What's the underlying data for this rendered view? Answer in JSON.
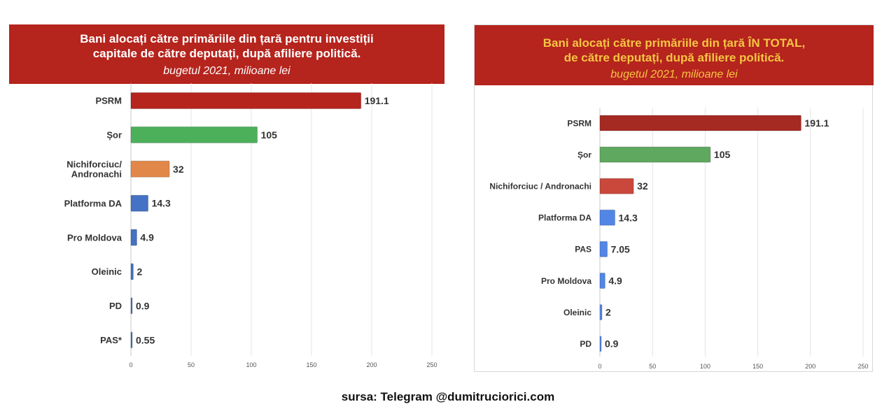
{
  "source": "sursa: Telegram @dumitruciorici.com",
  "chart_data": [
    {
      "type": "bar",
      "orientation": "horizontal",
      "title_lines": [
        "Bani alocați către primăriile din țară pentru investiții",
        "capitale de către deputați, după afiliere politică."
      ],
      "subtitle": "bugetul 2021, milioane lei",
      "categories": [
        "PSRM",
        "Șor",
        "Nichiforciuc/ Andronachi",
        "Platforma DA",
        "Pro  Moldova",
        "Oleinic",
        "PD",
        "PAS*"
      ],
      "values": [
        191.1,
        105,
        32,
        14.3,
        4.9,
        2,
        0.9,
        0.55
      ],
      "value_labels": [
        "191.1",
        "105",
        "32",
        "14.3",
        "4.9",
        "2",
        "0.9",
        "0.55"
      ],
      "colors": [
        "#b5241d",
        "#4cb05a",
        "#e2874a",
        "#4472c4",
        "#4472c4",
        "#4472c4",
        "#4472c4",
        "#4472c4"
      ],
      "xticks": [
        "0",
        "50",
        "100",
        "150",
        "200",
        "250"
      ],
      "xlim": [
        0,
        250
      ],
      "grid": true
    },
    {
      "type": "bar",
      "orientation": "horizontal",
      "title_lines": [
        "Bani alocați către primăriile din țară ÎN TOTAL,",
        "de către deputați, după afiliere politică."
      ],
      "subtitle": "bugetul 2021, milioane lei",
      "categories": [
        "PSRM",
        "Șor",
        "Nichiforciuc / Andronachi",
        "Platforma DA",
        "PAS",
        "Pro  Moldova",
        "Oleinic",
        "PD"
      ],
      "values": [
        191.1,
        105,
        32,
        14.3,
        7.05,
        4.9,
        2,
        0.9
      ],
      "value_labels": [
        "191.1",
        "105",
        "32",
        "14.3",
        "7.05",
        "4.9",
        "2",
        "0.9"
      ],
      "colors": [
        "#a52a22",
        "#5fa85f",
        "#c9473b",
        "#5186e6",
        "#5186e6",
        "#5186e6",
        "#5186e6",
        "#5186e6"
      ],
      "xticks": [
        "0",
        "50",
        "100",
        "150",
        "200",
        "250"
      ],
      "xlim": [
        0,
        250
      ],
      "grid": true
    }
  ]
}
